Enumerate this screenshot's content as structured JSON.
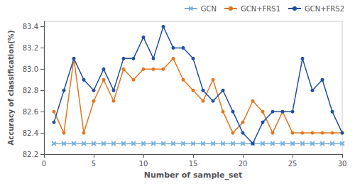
{
  "chart_data": {
    "type": "line",
    "xlabel": "Number of sample_set",
    "ylabel": "Accuracy of classification(%)",
    "x": [
      1,
      2,
      3,
      4,
      5,
      6,
      7,
      8,
      9,
      10,
      11,
      12,
      13,
      14,
      15,
      16,
      17,
      18,
      19,
      20,
      21,
      22,
      23,
      24,
      25,
      26,
      27,
      28,
      29,
      30
    ],
    "series": [
      {
        "name": "GCN",
        "color": "#7ab0dc",
        "marker": "x",
        "values": [
          82.3,
          82.3,
          82.3,
          82.3,
          82.3,
          82.3,
          82.3,
          82.3,
          82.3,
          82.3,
          82.3,
          82.3,
          82.3,
          82.3,
          82.3,
          82.3,
          82.3,
          82.3,
          82.3,
          82.3,
          82.3,
          82.3,
          82.3,
          82.3,
          82.3,
          82.3,
          82.3,
          82.3,
          82.3,
          82.3
        ]
      },
      {
        "name": "GCN+FRS1",
        "color": "#e07820",
        "marker": "circle",
        "values": [
          82.6,
          82.4,
          83.1,
          82.4,
          82.7,
          82.9,
          82.7,
          83.0,
          82.9,
          83.0,
          83.0,
          83.0,
          83.1,
          82.9,
          82.8,
          82.7,
          82.9,
          82.6,
          82.4,
          82.5,
          82.7,
          82.6,
          82.4,
          82.6,
          82.4,
          82.4,
          82.4,
          82.4,
          82.4,
          82.4
        ]
      },
      {
        "name": "GCN+FRS2",
        "color": "#2050a0",
        "marker": "circle",
        "values": [
          82.5,
          82.8,
          83.1,
          82.9,
          82.8,
          83.0,
          82.8,
          83.1,
          83.1,
          83.3,
          83.1,
          83.4,
          83.2,
          83.2,
          83.1,
          82.8,
          82.7,
          82.8,
          82.6,
          82.4,
          82.3,
          82.5,
          82.6,
          82.6,
          82.6,
          83.1,
          82.8,
          82.9,
          82.6,
          82.4
        ]
      }
    ],
    "xlim": [
      0,
      30
    ],
    "xticks": [
      0,
      5,
      10,
      15,
      20,
      25,
      30
    ],
    "ylim": [
      82.2,
      83.45
    ],
    "yticks": [
      82.2,
      82.4,
      82.6,
      82.8,
      {
        "value": 83,
        "label": "83.0"
      },
      83.2,
      83.4
    ],
    "legend": "upper right",
    "grid": false
  }
}
